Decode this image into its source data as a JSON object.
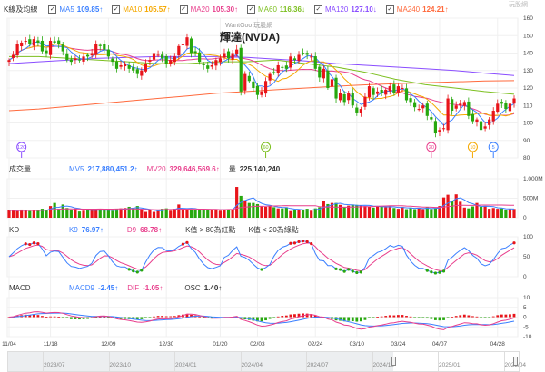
{
  "legend": {
    "title": "K線及均線",
    "items": [
      {
        "label": "MA5",
        "value": "109.85↑",
        "color": "#3a7fff"
      },
      {
        "label": "MA10",
        "value": "105.57↑",
        "color": "#f5a800"
      },
      {
        "label": "MA20",
        "value": "105.30↑",
        "color": "#e83e8c"
      },
      {
        "label": "MA60",
        "value": "116.36↓",
        "color": "#7cbf1f"
      },
      {
        "label": "MA120",
        "value": "127.10↓",
        "color": "#8a4dff"
      },
      {
        "label": "MA240",
        "value": "124.21↑",
        "color": "#ff6a3d"
      }
    ]
  },
  "watermark": "WantGoo 玩股網",
  "logo": "玩股網",
  "stock_title": "輝達(NVDA)",
  "volume_header": {
    "title": "成交量",
    "mv5": "MV5",
    "mv5_value": "217,880,451.2↑",
    "mv20": "MV20",
    "mv20_value": "329,646,569.6↑",
    "vol": "量",
    "vol_value": "225,140,240↓"
  },
  "kd_header": {
    "title": "KD",
    "k": "K9",
    "k_value": "76.97↑",
    "d": "D9",
    "d_value": "68.78↑",
    "note1": "K值 > 80為紅點",
    "note2": "K值 < 20為綠點"
  },
  "macd_header": {
    "title": "MACD",
    "macd": "MACD9",
    "macd_value": "-2.45↑",
    "dif": "DIF",
    "dif_value": "-1.05↑",
    "osc": "OSC",
    "osc_value": "1.40↑"
  },
  "colors": {
    "up": "#e8141a",
    "down": "#27a80e"
  },
  "chart_data": {
    "type": "candlestick",
    "price_ticks": [
      "160",
      "150",
      "140",
      "130",
      "120",
      "110",
      "100",
      "90",
      "80"
    ],
    "price_range": [
      80,
      160
    ],
    "volume_ticks": [
      "1,000M",
      "500M",
      "0"
    ],
    "kd_ticks": [
      "100",
      "50",
      "0"
    ],
    "macd_ticks": [
      "10",
      "5",
      "0",
      "-5",
      "-10"
    ],
    "date_labels": [
      {
        "i": 0,
        "t": "11/04"
      },
      {
        "i": 10,
        "t": "11/18"
      },
      {
        "i": 24,
        "t": "12/09"
      },
      {
        "i": 38,
        "t": "12/30"
      },
      {
        "i": 51,
        "t": "01/20"
      },
      {
        "i": 60,
        "t": "02/03"
      },
      {
        "i": 74,
        "t": "02/24"
      },
      {
        "i": 84,
        "t": "03/10"
      },
      {
        "i": 94,
        "t": "03/24"
      },
      {
        "i": 104,
        "t": "04/07"
      },
      {
        "i": 118,
        "t": "04/28"
      }
    ],
    "close": [
      136,
      139,
      145,
      146,
      147,
      145,
      148,
      146,
      141,
      140,
      147,
      146,
      145,
      141,
      136,
      135,
      137,
      136,
      138,
      138,
      140,
      145,
      144,
      142,
      138,
      135,
      131,
      133,
      134,
      131,
      130,
      128,
      130,
      134,
      136,
      140,
      139,
      137,
      134,
      136,
      138,
      144,
      145,
      149,
      140,
      140,
      135,
      133,
      131,
      133,
      136,
      137,
      140,
      137,
      140,
      142,
      118,
      128,
      124,
      120,
      116,
      118,
      124,
      128,
      129,
      133,
      132,
      131,
      138,
      136,
      139,
      140,
      139,
      138,
      131,
      126,
      131,
      120,
      125,
      114,
      117,
      112,
      117,
      110,
      106,
      108,
      115,
      121,
      116,
      118,
      117,
      119,
      121,
      117,
      121,
      120,
      113,
      112,
      109,
      108,
      110,
      104,
      102,
      94,
      96,
      97,
      114,
      107,
      110,
      111,
      112,
      104,
      101,
      102,
      96,
      98,
      102,
      107,
      111,
      111,
      108,
      111,
      114
    ],
    "volume_m": [
      190,
      180,
      170,
      210,
      200,
      170,
      180,
      190,
      230,
      200,
      300,
      380,
      230,
      340,
      250,
      210,
      220,
      160,
      180,
      210,
      200,
      200,
      190,
      190,
      190,
      180,
      220,
      240,
      250,
      280,
      240,
      300,
      190,
      150,
      190,
      150,
      200,
      230,
      240,
      180,
      230,
      340,
      220,
      210,
      210,
      200,
      190,
      210,
      210,
      200,
      210,
      180,
      210,
      200,
      210,
      790,
      560,
      450,
      380,
      380,
      350,
      290,
      280,
      290,
      270,
      240,
      240,
      270,
      170,
      190,
      200,
      190,
      230,
      180,
      240,
      270,
      420,
      350,
      380,
      380,
      330,
      280,
      310,
      340,
      330,
      320,
      300,
      290,
      260,
      300,
      280,
      270,
      300,
      250,
      230,
      280,
      220,
      260,
      220,
      250,
      220,
      270,
      220,
      250,
      300,
      520,
      590,
      430,
      600,
      410,
      260,
      240,
      290,
      380,
      280,
      290,
      230,
      250,
      230,
      240,
      200,
      220,
      225
    ],
    "ma_long": {
      "MA60": [
        138,
        138,
        137,
        136,
        135,
        134,
        134,
        135,
        135,
        136,
        134,
        132,
        129,
        125,
        122,
        120,
        118,
        116.4
      ],
      "MA120": [
        134,
        135,
        136,
        137,
        137.5,
        138,
        138,
        138,
        137.5,
        136.5,
        135.5,
        134,
        133,
        132,
        131,
        130,
        128.5,
        127.1
      ],
      "MA240": [
        107,
        108,
        109.5,
        111,
        112.5,
        114,
        115.5,
        117,
        118,
        119,
        120,
        121,
        121.8,
        122.5,
        123,
        123.5,
        124,
        124.2
      ]
    },
    "markers": [
      {
        "i": 3,
        "label": "120",
        "color": "#8a4dff"
      },
      {
        "i": 62,
        "label": "60",
        "color": "#7cbf1f"
      },
      {
        "i": 102,
        "label": "20",
        "color": "#e83e8c"
      },
      {
        "i": 112,
        "label": "10",
        "color": "#f5a800"
      },
      {
        "i": 117,
        "label": "5",
        "color": "#3a7fff"
      }
    ]
  },
  "navigator": {
    "labels": [
      "2023/07",
      "2023/10",
      "2024/01",
      "2024/04",
      "2024/07",
      "2024/10",
      "2025/01",
      "2025/04"
    ]
  }
}
